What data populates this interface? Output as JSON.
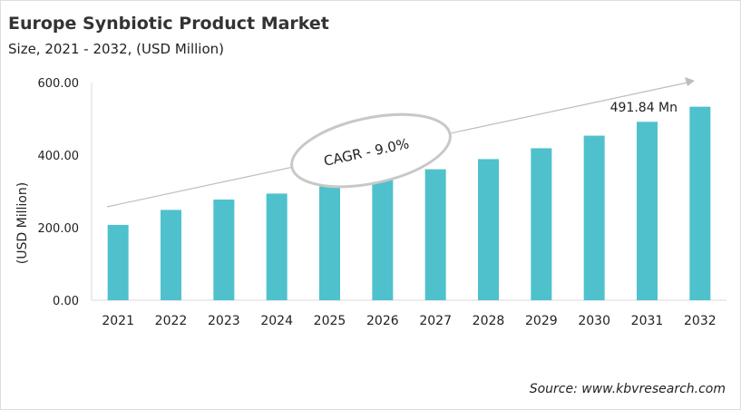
{
  "chart_data": {
    "type": "bar",
    "title": "Europe Synbiotic Product Market",
    "subtitle": "Size, 2021 - 2032, (USD Million)",
    "ylabel": "(USD Million)",
    "xlabel": "",
    "ylim": [
      0,
      600
    ],
    "yticks": [
      "0.00",
      "200.00",
      "400.00",
      "600.00"
    ],
    "categories": [
      "2021",
      "2022",
      "2023",
      "2024",
      "2025",
      "2026",
      "2027",
      "2028",
      "2029",
      "2030",
      "2031",
      "2032"
    ],
    "values": [
      207.7,
      249,
      277.5,
      294,
      314,
      336.5,
      361,
      389,
      419,
      453.6,
      491.84,
      533.4
    ],
    "annotations": {
      "cagr": "CAGR - 9.0%",
      "value_label": "491.84 Mn"
    },
    "bar_color": "#4fc1cd",
    "grid": false,
    "legend": "none"
  },
  "source": "Source: www.kbvresearch.com"
}
